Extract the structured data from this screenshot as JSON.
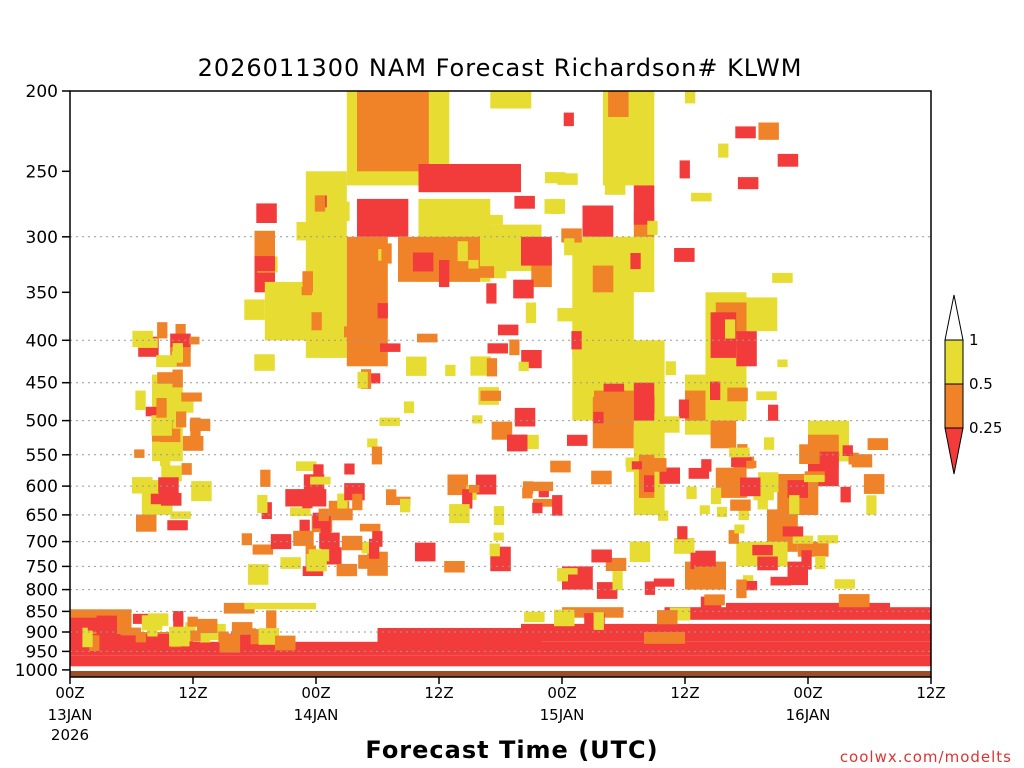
{
  "chart_data": {
    "type": "heatmap",
    "title": "2026011300 NAM Forecast Richardson# KLWM",
    "xlabel": "Forecast Time (UTC)",
    "ylabel": "",
    "y_scale": "log",
    "y_reversed": true,
    "ylim": [
      1020,
      200
    ],
    "xlim": [
      0,
      84
    ],
    "y_ticks": [
      200,
      250,
      300,
      350,
      400,
      450,
      500,
      550,
      600,
      650,
      700,
      750,
      800,
      850,
      900,
      950,
      1000
    ],
    "y_gridlines": [
      300,
      400,
      450,
      500,
      550,
      600,
      650,
      700,
      750,
      800,
      850,
      900,
      950
    ],
    "x_ticks": [
      {
        "x": 0,
        "label": "00Z",
        "sub1": "13JAN",
        "sub2": "2026"
      },
      {
        "x": 12,
        "label": "12Z",
        "sub1": "",
        "sub2": ""
      },
      {
        "x": 24,
        "label": "00Z",
        "sub1": "14JAN",
        "sub2": ""
      },
      {
        "x": 36,
        "label": "12Z",
        "sub1": "",
        "sub2": ""
      },
      {
        "x": 48,
        "label": "00Z",
        "sub1": "15JAN",
        "sub2": ""
      },
      {
        "x": 60,
        "label": "12Z",
        "sub1": "",
        "sub2": ""
      },
      {
        "x": 72,
        "label": "00Z",
        "sub1": "16JAN",
        "sub2": ""
      },
      {
        "x": 84,
        "label": "12Z",
        "sub1": "",
        "sub2": ""
      }
    ],
    "legend": {
      "position": "right",
      "labels": [
        "1",
        "0.5",
        "0.25"
      ],
      "bins": [
        {
          "range": "< 0.25",
          "color": "#f23c3c"
        },
        {
          "range": "0.25-0.5",
          "color": "#f08228"
        },
        {
          "range": "0.5-1",
          "color": "#e6dc32"
        },
        {
          "range": "> 1",
          "color": "#ffffff"
        }
      ]
    },
    "ground_color": "#9a4f28",
    "regions": [
      {
        "bin": "0.5-1",
        "x": [
          27,
          37
        ],
        "p": [
          200,
          260
        ]
      },
      {
        "bin": "0.25-0.5",
        "x": [
          28,
          35
        ],
        "p": [
          200,
          250
        ]
      },
      {
        "bin": "0.5-1",
        "x": [
          41,
          45
        ],
        "p": [
          200,
          210
        ]
      },
      {
        "bin": "0.5-1",
        "x": [
          52,
          57
        ],
        "p": [
          200,
          260
        ]
      },
      {
        "bin": "0.25-0.5",
        "x": [
          52.5,
          54.5
        ],
        "p": [
          200,
          215
        ]
      },
      {
        "bin": "0.5-1",
        "x": [
          60,
          61
        ],
        "p": [
          200,
          207
        ]
      },
      {
        "bin": "0.5-1",
        "x": [
          23,
          27
        ],
        "p": [
          250,
          420
        ]
      },
      {
        "bin": "0.25-0.5",
        "x": [
          18,
          20
        ],
        "p": [
          295,
          320
        ]
      },
      {
        "bin": "< 0.25",
        "x": [
          18,
          20
        ],
        "p": [
          325,
          350
        ]
      },
      {
        "bin": "0.5-1",
        "x": [
          19,
          24
        ],
        "p": [
          340,
          400
        ]
      },
      {
        "bin": "0.25-0.5",
        "x": [
          27,
          31
        ],
        "p": [
          300,
          430
        ]
      },
      {
        "bin": "< 0.25",
        "x": [
          28,
          33
        ],
        "p": [
          270,
          300
        ]
      },
      {
        "bin": "< 0.25",
        "x": [
          34,
          44
        ],
        "p": [
          245,
          265
        ]
      },
      {
        "bin": "0.5-1",
        "x": [
          34,
          41
        ],
        "p": [
          270,
          340
        ]
      },
      {
        "bin": "0.25-0.5",
        "x": [
          32,
          40
        ],
        "p": [
          300,
          340
        ]
      },
      {
        "bin": "< 0.25",
        "x": [
          36,
          37
        ],
        "p": [
          320,
          345
        ]
      },
      {
        "bin": "0.5-1",
        "x": [
          40,
          46
        ],
        "p": [
          290,
          330
        ]
      },
      {
        "bin": "0.25-0.5",
        "x": [
          45,
          47
        ],
        "p": [
          310,
          345
        ]
      },
      {
        "bin": "< 0.25",
        "x": [
          44,
          47
        ],
        "p": [
          300,
          325
        ]
      },
      {
        "bin": "< 0.25",
        "x": [
          50,
          53
        ],
        "p": [
          275,
          300
        ]
      },
      {
        "bin": "< 0.25",
        "x": [
          51,
          53
        ],
        "p": [
          300,
          320
        ]
      },
      {
        "bin": "0.5-1",
        "x": [
          49,
          55
        ],
        "p": [
          300,
          420
        ]
      },
      {
        "bin": "0.25-0.5",
        "x": [
          51,
          53
        ],
        "p": [
          325,
          350
        ]
      },
      {
        "bin": "0.5-1",
        "x": [
          54,
          57
        ],
        "p": [
          300,
          350
        ]
      },
      {
        "bin": "0.25-0.5",
        "x": [
          55,
          57
        ],
        "p": [
          280,
          300
        ]
      },
      {
        "bin": "< 0.25",
        "x": [
          55,
          57
        ],
        "p": [
          260,
          290
        ]
      },
      {
        "bin": "0.5-1",
        "x": [
          49,
          58
        ],
        "p": [
          400,
          500
        ]
      },
      {
        "bin": "0.25-0.5",
        "x": [
          51,
          55
        ],
        "p": [
          460,
          540
        ]
      },
      {
        "bin": "< 0.25",
        "x": [
          55,
          57
        ],
        "p": [
          450,
          510
        ]
      },
      {
        "bin": "0.5-1",
        "x": [
          55,
          58
        ],
        "p": [
          500,
          650
        ]
      },
      {
        "bin": "0.25-0.5",
        "x": [
          55.5,
          57
        ],
        "p": [
          550,
          620
        ]
      },
      {
        "bin": "< 0.25",
        "x": [
          56,
          57
        ],
        "p": [
          580,
          610
        ]
      },
      {
        "bin": "0.5-1",
        "x": [
          62,
          66
        ],
        "p": [
          350,
          500
        ]
      },
      {
        "bin": "0.25-0.5",
        "x": [
          63,
          66
        ],
        "p": [
          360,
          410
        ]
      },
      {
        "bin": "< 0.25",
        "x": [
          62.5,
          65
        ],
        "p": [
          370,
          420
        ]
      },
      {
        "bin": "0.5-1",
        "x": [
          60,
          63
        ],
        "p": [
          440,
          520
        ]
      },
      {
        "bin": "0.25-0.5",
        "x": [
          60,
          62
        ],
        "p": [
          460,
          500
        ]
      },
      {
        "bin": "0.25-0.5",
        "x": [
          62.5,
          65
        ],
        "p": [
          500,
          540
        ]
      },
      {
        "bin": "0.5-1",
        "x": [
          66,
          69
        ],
        "p": [
          355,
          390
        ]
      },
      {
        "bin": "< 0.25",
        "x": [
          65,
          67
        ],
        "p": [
          390,
          430
        ]
      },
      {
        "bin": "0.25-0.5",
        "x": [
          63,
          66
        ],
        "p": [
          570,
          620
        ]
      },
      {
        "bin": "0.5-1",
        "x": [
          72,
          76
        ],
        "p": [
          500,
          560
        ]
      },
      {
        "bin": "0.25-0.5",
        "x": [
          72,
          75
        ],
        "p": [
          520,
          570
        ]
      },
      {
        "bin": "< 0.25",
        "x": [
          72,
          75
        ],
        "p": [
          545,
          600
        ]
      },
      {
        "bin": "0.25-0.5",
        "x": [
          69,
          73
        ],
        "p": [
          580,
          650
        ]
      },
      {
        "bin": "< 0.25",
        "x": [
          70,
          72
        ],
        "p": [
          590,
          620
        ]
      },
      {
        "bin": "0.25-0.5",
        "x": [
          68,
          71
        ],
        "p": [
          640,
          720
        ]
      },
      {
        "bin": "0.5-1",
        "x": [
          65,
          70
        ],
        "p": [
          700,
          750
        ]
      },
      {
        "bin": "0.25-0.5",
        "x": [
          60,
          64
        ],
        "p": [
          740,
          800
        ]
      },
      {
        "bin": "0.25-0.5",
        "x": [
          71,
          74
        ],
        "p": [
          700,
          730
        ]
      },
      {
        "bin": "< 0.25",
        "x": [
          70,
          72
        ],
        "p": [
          740,
          790
        ]
      },
      {
        "bin": "0.5-1",
        "x": [
          7,
          10
        ],
        "p": [
          590,
          650
        ]
      },
      {
        "bin": "0.5-1",
        "x": [
          8,
          11
        ],
        "p": [
          440,
          560
        ]
      },
      {
        "bin": "0.25-0.5",
        "x": [
          8,
          10
        ],
        "p": [
          500,
          530
        ]
      },
      {
        "bin": "< 0.25",
        "x": [
          21,
          25
        ],
        "p": [
          605,
          635
        ]
      },
      {
        "bin": "< 0.25",
        "x": [
          48,
          51
        ],
        "p": [
          750,
          800
        ]
      },
      {
        "bin": "< 0.25",
        "x": [
          41,
          43
        ],
        "p": [
          710,
          760
        ]
      },
      {
        "bin": "0.25-0.5",
        "x": [
          29,
          31
        ],
        "p": [
          720,
          770
        ]
      },
      {
        "bin": "0.25-0.5",
        "x": [
          15,
          18
        ],
        "p": [
          830,
          855
        ]
      },
      {
        "bin": "0.5-1",
        "x": [
          17,
          24
        ],
        "p": [
          830,
          845
        ]
      },
      {
        "bin": "0.25-0.5",
        "x": [
          0,
          6
        ],
        "p": [
          845,
          900
        ]
      },
      {
        "bin": "< 0.25",
        "x": [
          0,
          4
        ],
        "p": [
          865,
          905
        ]
      },
      {
        "bin": "0.25-0.5",
        "x": [
          48,
          54
        ],
        "p": [
          840,
          865
        ]
      },
      {
        "bin": "< 0.25",
        "x": [
          58,
          84
        ],
        "p": [
          840,
          870
        ]
      },
      {
        "bin": "< 0.25",
        "x": [
          64,
          80
        ],
        "p": [
          830,
          860
        ]
      },
      {
        "bin": "0.25-0.5",
        "x": [
          75,
          78
        ],
        "p": [
          810,
          840
        ]
      },
      {
        "bin": "< 0.25",
        "x": [
          0,
          84
        ],
        "p": [
          925,
          960
        ]
      },
      {
        "bin": "< 0.25",
        "x": [
          0,
          84
        ],
        "p": [
          960,
          990
        ]
      },
      {
        "bin": "0.25-0.5",
        "x": [
          2,
          10
        ],
        "p": [
          900,
          915
        ]
      },
      {
        "bin": "< 0.25",
        "x": [
          44,
          84
        ],
        "p": [
          880,
          925
        ]
      },
      {
        "bin": "< 0.25",
        "x": [
          30,
          46
        ],
        "p": [
          890,
          930
        ]
      },
      {
        "bin": "0.25-0.5",
        "x": [
          56,
          60
        ],
        "p": [
          900,
          930
        ]
      },
      {
        "bin": "< 0.25",
        "x": [
          0,
          12
        ],
        "p": [
          905,
          940
        ]
      }
    ],
    "scatter_cells": true
  },
  "credit": "coolwx.com/modelts"
}
